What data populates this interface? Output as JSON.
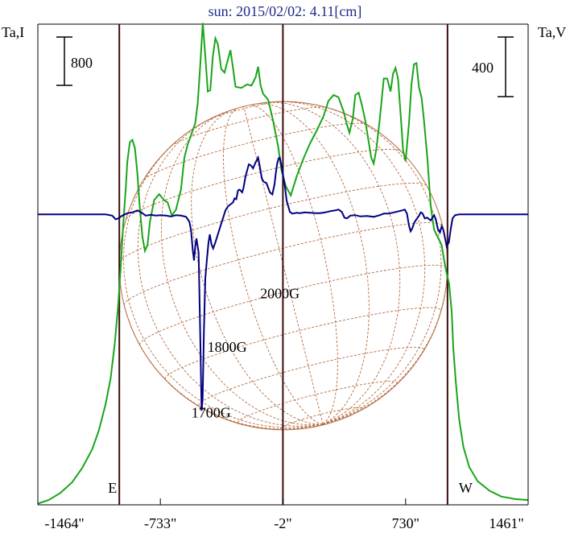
{
  "chart_data": {
    "type": "line",
    "title": "sun: 2015/02/02: 4.11[cm]",
    "y_left_label": "Ta,I",
    "y_right_label": "Ta,V",
    "left_scale_bar": "800",
    "right_scale_bar": "400",
    "x_ticks": [
      "-1464\"",
      "-733\"",
      "-2\"",
      "730\"",
      "1461\""
    ],
    "x_tick_values": [
      -1464,
      -733,
      -2,
      730,
      1461
    ],
    "xlim": [
      -1464,
      1461
    ],
    "limb_markers": [
      {
        "label": "E",
        "x": -978
      },
      {
        "label": "W",
        "x": 980
      }
    ],
    "center_marker_x": -2,
    "annotations": [
      {
        "text": "2000G",
        "x": -20,
        "y": 200
      },
      {
        "text": "1800G",
        "x": -335,
        "y": -255
      },
      {
        "text": "1700G",
        "x": -430,
        "y": -810
      }
    ],
    "series": [
      {
        "name": "I",
        "color": "#1aa51a",
        "axis": "left",
        "ylim": [
          -1550,
          2520
        ],
        "points": [
          [
            -1464,
            -1540
          ],
          [
            -1400,
            -1510
          ],
          [
            -1330,
            -1450
          ],
          [
            -1260,
            -1360
          ],
          [
            -1200,
            -1240
          ],
          [
            -1140,
            -1080
          ],
          [
            -1100,
            -920
          ],
          [
            -1060,
            -700
          ],
          [
            -1030,
            -480
          ],
          [
            -1005,
            -180
          ],
          [
            -985,
            130
          ],
          [
            -970,
            460
          ],
          [
            -955,
            820
          ],
          [
            -940,
            1120
          ],
          [
            -930,
            1360
          ],
          [
            -915,
            1520
          ],
          [
            -900,
            1540
          ],
          [
            -885,
            1470
          ],
          [
            -870,
            1250
          ],
          [
            -855,
            950
          ],
          [
            -840,
            720
          ],
          [
            -825,
            600
          ],
          [
            -810,
            650
          ],
          [
            -795,
            850
          ],
          [
            -770,
            1030
          ],
          [
            -740,
            1080
          ],
          [
            -710,
            1030
          ],
          [
            -690,
            1010
          ],
          [
            -665,
            900
          ],
          [
            -640,
            950
          ],
          [
            -610,
            1120
          ],
          [
            -590,
            1390
          ],
          [
            -570,
            1500
          ],
          [
            -545,
            1600
          ],
          [
            -525,
            1680
          ],
          [
            -510,
            1850
          ],
          [
            -495,
            2180
          ],
          [
            -480,
            2530
          ],
          [
            -465,
            2250
          ],
          [
            -450,
            1950
          ],
          [
            -435,
            1960
          ],
          [
            -420,
            2250
          ],
          [
            -405,
            2400
          ],
          [
            -390,
            2350
          ],
          [
            -370,
            2140
          ],
          [
            -350,
            2110
          ],
          [
            -330,
            2220
          ],
          [
            -315,
            2300
          ],
          [
            -300,
            2150
          ],
          [
            -285,
            1990
          ],
          [
            -250,
            1980
          ],
          [
            -215,
            2010
          ],
          [
            -190,
            2000
          ],
          [
            -165,
            2070
          ],
          [
            -150,
            2160
          ],
          [
            -135,
            2000
          ],
          [
            -120,
            1930
          ],
          [
            -90,
            1880
          ],
          [
            -60,
            1700
          ],
          [
            -30,
            1480
          ],
          [
            -10,
            1280
          ],
          [
            15,
            1150
          ],
          [
            45,
            1070
          ],
          [
            80,
            1230
          ],
          [
            120,
            1380
          ],
          [
            160,
            1510
          ],
          [
            200,
            1620
          ],
          [
            240,
            1740
          ],
          [
            270,
            1870
          ],
          [
            300,
            1920
          ],
          [
            330,
            1900
          ],
          [
            360,
            1780
          ],
          [
            380,
            1670
          ],
          [
            395,
            1600
          ],
          [
            415,
            1720
          ],
          [
            430,
            1920
          ],
          [
            450,
            1940
          ],
          [
            470,
            1830
          ],
          [
            490,
            1700
          ],
          [
            510,
            1520
          ],
          [
            525,
            1390
          ],
          [
            540,
            1340
          ],
          [
            555,
            1460
          ],
          [
            575,
            1700
          ],
          [
            600,
            2060
          ],
          [
            620,
            2060
          ],
          [
            640,
            1950
          ],
          [
            655,
            2100
          ],
          [
            670,
            2150
          ],
          [
            685,
            2060
          ],
          [
            700,
            1760
          ],
          [
            715,
            1450
          ],
          [
            730,
            1360
          ],
          [
            750,
            1680
          ],
          [
            765,
            2010
          ],
          [
            780,
            2180
          ],
          [
            795,
            2190
          ],
          [
            810,
            1980
          ],
          [
            825,
            1900
          ],
          [
            840,
            1700
          ],
          [
            860,
            1380
          ],
          [
            880,
            980
          ],
          [
            900,
            780
          ],
          [
            920,
            720
          ],
          [
            945,
            650
          ],
          [
            960,
            520
          ],
          [
            975,
            410
          ],
          [
            990,
            320
          ],
          [
            1005,
            80
          ],
          [
            1015,
            -230
          ],
          [
            1030,
            -520
          ],
          [
            1050,
            -830
          ],
          [
            1075,
            -1060
          ],
          [
            1110,
            -1230
          ],
          [
            1160,
            -1350
          ],
          [
            1230,
            -1430
          ],
          [
            1300,
            -1480
          ],
          [
            1380,
            -1500
          ],
          [
            1461,
            -1510
          ]
        ]
      },
      {
        "name": "V",
        "color": "#000080",
        "axis": "right",
        "ylim": [
          -725,
          475
        ],
        "points": [
          [
            -1464,
            0
          ],
          [
            -1060,
            0
          ],
          [
            -1020,
            -3
          ],
          [
            -1000,
            -12
          ],
          [
            -985,
            -10
          ],
          [
            -960,
            -3
          ],
          [
            -930,
            3
          ],
          [
            -900,
            5
          ],
          [
            -870,
            10
          ],
          [
            -850,
            6
          ],
          [
            -820,
            -3
          ],
          [
            -790,
            -1
          ],
          [
            -760,
            -3
          ],
          [
            -730,
            -2
          ],
          [
            -700,
            -3
          ],
          [
            -670,
            -5
          ],
          [
            -640,
            -2
          ],
          [
            -610,
            -3
          ],
          [
            -580,
            -6
          ],
          [
            -560,
            -18
          ],
          [
            -550,
            -40
          ],
          [
            -540,
            -88
          ],
          [
            -532,
            -115
          ],
          [
            -525,
            -80
          ],
          [
            -518,
            -60
          ],
          [
            -505,
            -95
          ],
          [
            -495,
            -310
          ],
          [
            -487,
            -490
          ],
          [
            -481,
            -460
          ],
          [
            -473,
            -290
          ],
          [
            -465,
            -160
          ],
          [
            -455,
            -110
          ],
          [
            -446,
            -70
          ],
          [
            -438,
            -50
          ],
          [
            -428,
            -75
          ],
          [
            -418,
            -85
          ],
          [
            -405,
            -70
          ],
          [
            -390,
            -50
          ],
          [
            -375,
            -30
          ],
          [
            -360,
            -10
          ],
          [
            -345,
            10
          ],
          [
            -330,
            20
          ],
          [
            -315,
            25
          ],
          [
            -300,
            30
          ],
          [
            -290,
            40
          ],
          [
            -280,
            38
          ],
          [
            -270,
            60
          ],
          [
            -260,
            62
          ],
          [
            -245,
            55
          ],
          [
            -238,
            65
          ],
          [
            -225,
            95
          ],
          [
            -215,
            110
          ],
          [
            -205,
            125
          ],
          [
            -192,
            122
          ],
          [
            -180,
            115
          ],
          [
            -165,
            130
          ],
          [
            -150,
            142
          ],
          [
            -140,
            120
          ],
          [
            -128,
            90
          ],
          [
            -118,
            82
          ],
          [
            -100,
            78
          ],
          [
            -80,
            55
          ],
          [
            -65,
            50
          ],
          [
            -52,
            75
          ],
          [
            -45,
            100
          ],
          [
            -37,
            125
          ],
          [
            -28,
            140
          ],
          [
            -20,
            142
          ],
          [
            -10,
            120
          ],
          [
            0,
            95
          ],
          [
            10,
            70
          ],
          [
            20,
            35
          ],
          [
            30,
            20
          ],
          [
            40,
            6
          ],
          [
            55,
            2
          ],
          [
            80,
            4
          ],
          [
            100,
            3
          ],
          [
            130,
            5
          ],
          [
            160,
            4
          ],
          [
            190,
            3
          ],
          [
            220,
            3
          ],
          [
            250,
            5
          ],
          [
            280,
            8
          ],
          [
            310,
            10
          ],
          [
            330,
            12
          ],
          [
            350,
            6
          ],
          [
            365,
            -8
          ],
          [
            380,
            -10
          ],
          [
            400,
            -3
          ],
          [
            430,
            -2
          ],
          [
            460,
            -5
          ],
          [
            500,
            -4
          ],
          [
            540,
            -6
          ],
          [
            575,
            -2
          ],
          [
            600,
            2
          ],
          [
            630,
            2
          ],
          [
            660,
            5
          ],
          [
            690,
            8
          ],
          [
            710,
            10
          ],
          [
            725,
            12
          ],
          [
            738,
            2
          ],
          [
            750,
            -28
          ],
          [
            760,
            -42
          ],
          [
            770,
            -35
          ],
          [
            782,
            -20
          ],
          [
            795,
            -12
          ],
          [
            810,
            -3
          ],
          [
            820,
            5
          ],
          [
            830,
            3
          ],
          [
            845,
            -10
          ],
          [
            858,
            -8
          ],
          [
            870,
            -12
          ],
          [
            880,
            -15
          ],
          [
            890,
            -8
          ],
          [
            900,
            -2
          ],
          [
            910,
            -12
          ],
          [
            922,
            -36
          ],
          [
            935,
            -45
          ],
          [
            945,
            -30
          ],
          [
            955,
            -38
          ],
          [
            965,
            -58
          ],
          [
            975,
            -80
          ],
          [
            988,
            -70
          ],
          [
            1000,
            -35
          ],
          [
            1010,
            -10
          ],
          [
            1025,
            -2
          ],
          [
            1050,
            0
          ],
          [
            1461,
            0
          ]
        ]
      }
    ],
    "solar_grid_color": "#b36b3e"
  }
}
